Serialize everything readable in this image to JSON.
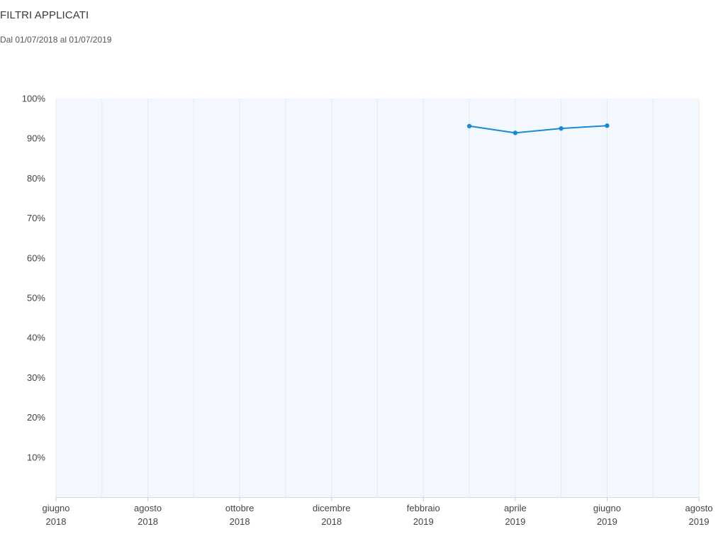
{
  "header": {
    "title": "FILTRI APPLICATI",
    "subtitle": "Dal 01/07/2018 al 01/07/2019"
  },
  "colors": {
    "plot_background": "#f3f8fe",
    "grid_line": "#e3ebf4",
    "series_line": "#1a8ad4"
  },
  "chart_data": {
    "type": "line",
    "title": "",
    "xlabel": "",
    "ylabel": "",
    "ylim": [
      0,
      100
    ],
    "y_ticks": [
      10,
      20,
      30,
      40,
      50,
      60,
      70,
      80,
      90,
      100
    ],
    "y_tick_labels": [
      "10%",
      "20%",
      "30%",
      "40%",
      "50%",
      "60%",
      "70%",
      "80%",
      "90%",
      "100%"
    ],
    "xlim": [
      "2018-06",
      "2019-08"
    ],
    "x_tick_labels": [
      {
        "month": "2018-06",
        "line1": "giugno",
        "line2": "2018"
      },
      {
        "month": "2018-08",
        "line1": "agosto",
        "line2": "2018"
      },
      {
        "month": "2018-10",
        "line1": "ottobre",
        "line2": "2018"
      },
      {
        "month": "2018-12",
        "line1": "dicembre",
        "line2": "2018"
      },
      {
        "month": "2019-02",
        "line1": "febbraio",
        "line2": "2019"
      },
      {
        "month": "2019-04",
        "line1": "aprile",
        "line2": "2019"
      },
      {
        "month": "2019-06",
        "line1": "giugno",
        "line2": "2019"
      },
      {
        "month": "2019-08",
        "line1": "agosto",
        "line2": "2019"
      }
    ],
    "grid_months": [
      "2018-06",
      "2018-07",
      "2018-08",
      "2018-09",
      "2018-10",
      "2018-11",
      "2018-12",
      "2019-01",
      "2019-02",
      "2019-03",
      "2019-04",
      "2019-05",
      "2019-06",
      "2019-07",
      "2019-08"
    ],
    "grid": true,
    "legend": "none",
    "series": [
      {
        "points": [
          {
            "x": "2019-03",
            "y": 93.1
          },
          {
            "x": "2019-04",
            "y": 91.4
          },
          {
            "x": "2019-05",
            "y": 92.5
          },
          {
            "x": "2019-06",
            "y": 93.2
          }
        ]
      }
    ]
  }
}
